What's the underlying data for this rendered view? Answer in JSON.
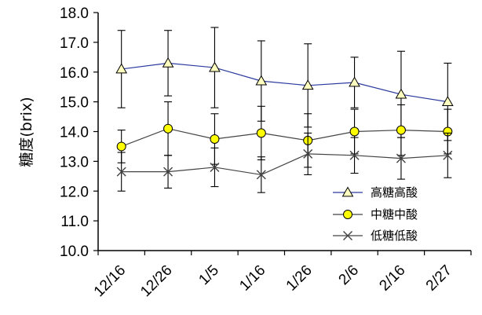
{
  "chart_data": {
    "type": "line",
    "ylabel": "糖度(brix)",
    "xlabel": "",
    "title": "",
    "ylim": [
      10.0,
      18.0
    ],
    "yticks": [
      "10.0",
      "11.0",
      "12.0",
      "13.0",
      "14.0",
      "15.0",
      "16.0",
      "17.0",
      "18.0"
    ],
    "categories": [
      "12/16",
      "12/26",
      "1/5",
      "1/16",
      "1/26",
      "2/6",
      "2/16",
      "2/27"
    ],
    "legend_position": "bottom-right",
    "series": [
      {
        "name": "高糖高酸",
        "marker": "triangle",
        "color": "#2b3a9e",
        "values": [
          16.1,
          16.3,
          16.15,
          15.7,
          15.55,
          15.65,
          15.25,
          15.0
        ],
        "error": [
          1.3,
          1.1,
          1.35,
          1.35,
          1.4,
          0.85,
          1.45,
          1.3
        ]
      },
      {
        "name": "中糖中酸",
        "marker": "circle",
        "color": "#444444",
        "values": [
          13.5,
          14.1,
          13.75,
          13.95,
          13.7,
          14.0,
          14.05,
          14.0
        ],
        "error": [
          0.55,
          0.9,
          0.85,
          0.9,
          0.9,
          0.75,
          0.85,
          0.75
        ]
      },
      {
        "name": "低糖低酸",
        "marker": "x",
        "color": "#444444",
        "values": [
          12.65,
          12.65,
          12.8,
          12.55,
          13.25,
          13.2,
          13.1,
          13.2
        ],
        "error": [
          0.65,
          0.55,
          0.65,
          0.6,
          0.7,
          0.6,
          0.7,
          0.75
        ]
      }
    ]
  }
}
